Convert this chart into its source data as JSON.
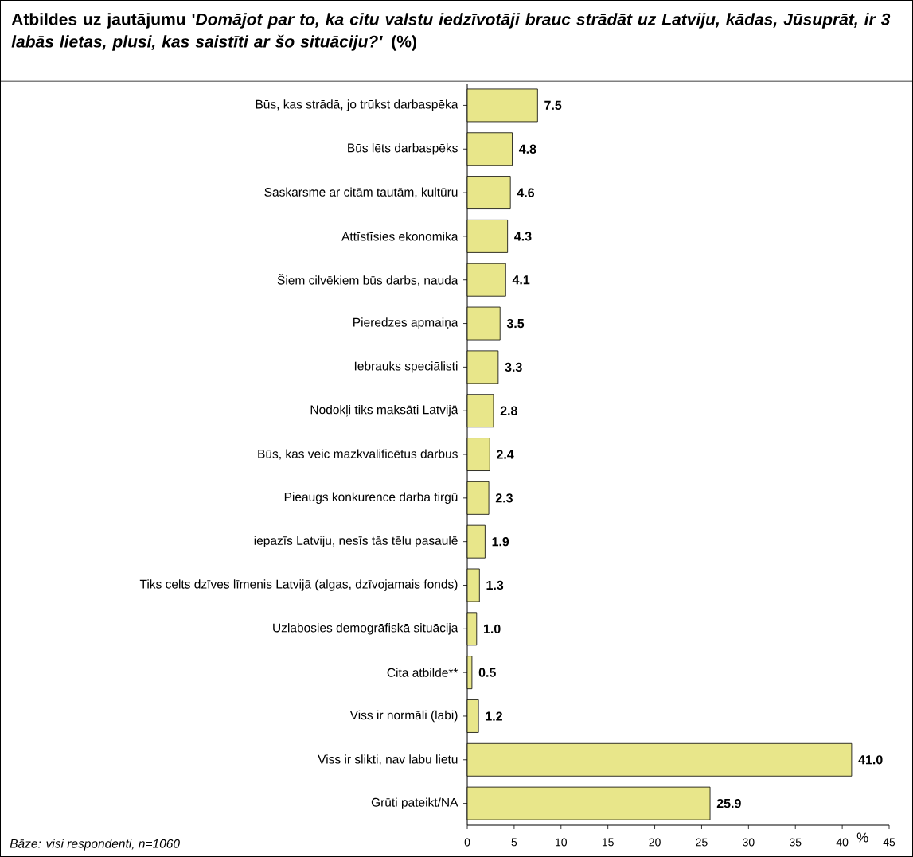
{
  "chart_data": {
    "type": "bar",
    "orientation": "horizontal",
    "title": "Atbildes uz jautājumu '*Domājot par to, ka citu valstu iedzīvotāji brauc strādāt uz Latviju, kādas, Jūsuprāt, ir 3 labās lietas, plusi, kas saistīti ar šo situāciju?'* (%)",
    "xlabel": "%",
    "annotations": [
      "*Bāze: visi respondenti, n=1060*"
    ],
    "categories": [
      "Būs, kas strādā, jo trūkst darbaspēka",
      "Būs lēts darbaspēks",
      "Saskarsme ar citām tautām, kultūru",
      "Attīstīsies ekonomika",
      "Šiem cilvēkiem būs darbs, nauda",
      "Pieredzes apmaiņa",
      "Iebrauks speciālisti",
      "Nodokļi tiks maksāti Latvijā",
      "Būs, kas veic mazkvalificētus darbus",
      "Pieaugs konkurence darba tirgū",
      "iepazīs Latviju, nesīs tās tēlu pasaulē",
      "Tiks celts dzīves līmenis Latvijā (algas, dzīvojamais fonds)",
      "Uzlabosies demogrāfiskā situācija",
      "Cita atbilde**",
      "Viss ir normāli (labi)",
      "Viss ir slikti, nav labu lietu",
      "Grūti pateikt/NA"
    ],
    "values": [
      7.5,
      4.8,
      4.6,
      4.3,
      4.1,
      3.5,
      3.3,
      2.8,
      2.4,
      2.3,
      1.9,
      1.3,
      1.0,
      0.5,
      1.2,
      41.0,
      25.9
    ],
    "value_labels": [
      "7.5",
      "4.8",
      "4.6",
      "4.3",
      "4.1",
      "3.5",
      "3.3",
      "2.8",
      "2.4",
      "2.3",
      "1.9",
      "1.3",
      "1.0",
      "0.5",
      "1.2",
      "41.0",
      "25.9"
    ],
    "color": "#e8e68a",
    "xlim": [
      0,
      45
    ],
    "xticks": [
      0,
      5,
      10,
      15,
      20,
      25,
      30,
      35,
      40,
      45
    ],
    "grid": false
  }
}
